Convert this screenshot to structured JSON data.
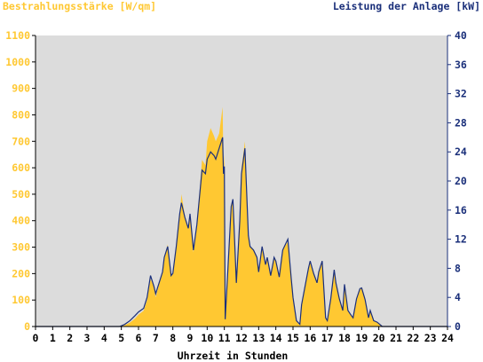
{
  "chart_data": {
    "type": "area",
    "title_left": "Bestrahlungsstärke [W/qm]",
    "title_right": "Leistung der Anlage [kW]",
    "xlabel": "Uhrzeit in Stunden",
    "xlim": [
      0,
      24
    ],
    "ylim_left": [
      0,
      1100
    ],
    "ylim_right": [
      0,
      40
    ],
    "x_ticks": [
      "0",
      "1",
      "2",
      "3",
      "4",
      "5",
      "6",
      "7",
      "8",
      "9",
      "10",
      "11",
      "12",
      "13",
      "14",
      "15",
      "16",
      "17",
      "18",
      "19",
      "20",
      "21",
      "22",
      "23",
      "24"
    ],
    "left_ticks": [
      "0",
      "100",
      "200",
      "300",
      "400",
      "500",
      "600",
      "700",
      "800",
      "900",
      "1000",
      "1100"
    ],
    "right_ticks": [
      "0",
      "4",
      "8",
      "12",
      "16",
      "20",
      "24",
      "28",
      "32",
      "36",
      "40"
    ],
    "colors": {
      "irradiance": "#ffc832",
      "power": "#1a2f7a",
      "plot_bg": "#dcdcdc"
    },
    "grid": false,
    "series": [
      {
        "name": "Bestrahlungsstärke [W/qm]",
        "axis": "left",
        "style": "filled-area",
        "x": [
          0,
          4.9,
          5.2,
          5.5,
          5.8,
          6.0,
          6.3,
          6.5,
          6.7,
          6.9,
          7.0,
          7.2,
          7.4,
          7.5,
          7.7,
          7.9,
          8.0,
          8.2,
          8.4,
          8.5,
          8.7,
          8.9,
          9.0,
          9.2,
          9.4,
          9.5,
          9.7,
          9.9,
          10.0,
          10.2,
          10.4,
          10.5,
          10.7,
          10.9,
          10.95,
          11.0,
          11.05,
          11.2,
          11.4,
          11.5,
          11.7,
          11.9,
          12.0,
          12.2,
          12.4,
          12.5,
          12.7,
          12.9,
          13.0,
          13.2,
          13.4,
          13.5,
          13.7,
          13.9,
          14.0,
          14.2,
          14.4,
          14.5,
          14.7,
          14.9,
          15.0,
          15.2,
          15.4,
          15.5,
          15.7,
          15.9,
          16.0,
          16.2,
          16.4,
          16.5,
          16.7,
          16.9,
          17.0,
          17.2,
          17.4,
          17.5,
          17.7,
          17.9,
          18.0,
          18.2,
          18.4,
          18.5,
          18.7,
          18.9,
          19.0,
          19.2,
          19.4,
          19.5,
          19.7,
          19.9,
          20.0,
          20.2,
          24
        ],
        "values": [
          0,
          0,
          5,
          15,
          30,
          45,
          60,
          100,
          180,
          150,
          110,
          160,
          200,
          260,
          310,
          190,
          200,
          300,
          420,
          500,
          420,
          370,
          420,
          280,
          390,
          460,
          630,
          610,
          700,
          750,
          720,
          700,
          730,
          830,
          600,
          650,
          40,
          200,
          450,
          480,
          160,
          400,
          600,
          700,
          350,
          300,
          290,
          260,
          200,
          300,
          230,
          260,
          190,
          260,
          250,
          180,
          290,
          300,
          320,
          170,
          100,
          20,
          5,
          80,
          150,
          220,
          250,
          200,
          160,
          210,
          250,
          30,
          20,
          100,
          210,
          160,
          100,
          60,
          160,
          60,
          40,
          30,
          100,
          140,
          145,
          100,
          30,
          60,
          20,
          15,
          10,
          0,
          0
        ]
      },
      {
        "name": "Leistung der Anlage [kW]",
        "axis": "right",
        "style": "line",
        "x": [
          0,
          4.9,
          5.2,
          5.5,
          5.8,
          6.0,
          6.3,
          6.5,
          6.7,
          6.9,
          7.0,
          7.2,
          7.4,
          7.5,
          7.7,
          7.9,
          8.0,
          8.2,
          8.4,
          8.5,
          8.7,
          8.9,
          9.0,
          9.2,
          9.4,
          9.5,
          9.7,
          9.9,
          10.0,
          10.2,
          10.4,
          10.5,
          10.7,
          10.9,
          10.95,
          11.0,
          11.05,
          11.2,
          11.4,
          11.5,
          11.7,
          11.9,
          12.0,
          12.2,
          12.4,
          12.5,
          12.7,
          12.9,
          13.0,
          13.2,
          13.4,
          13.5,
          13.7,
          13.9,
          14.0,
          14.2,
          14.4,
          14.5,
          14.7,
          14.9,
          15.0,
          15.2,
          15.4,
          15.5,
          15.7,
          15.9,
          16.0,
          16.2,
          16.4,
          16.5,
          16.7,
          16.9,
          17.0,
          17.2,
          17.4,
          17.5,
          17.7,
          17.9,
          18.0,
          18.2,
          18.4,
          18.5,
          18.7,
          18.9,
          19.0,
          19.2,
          19.4,
          19.5,
          19.7,
          19.9,
          20.0,
          20.2,
          24
        ],
        "values": [
          0,
          0,
          0.3,
          0.8,
          1.5,
          2.0,
          2.5,
          4.0,
          7.0,
          5.5,
          4.5,
          6.0,
          7.5,
          9.5,
          11.0,
          7.0,
          7.3,
          11.0,
          15.5,
          17.0,
          15.0,
          13.5,
          15.5,
          10.5,
          14.0,
          16.5,
          21.5,
          21.0,
          23.0,
          24.0,
          23.5,
          23.0,
          24.5,
          26.0,
          21.0,
          22.0,
          1.0,
          7.5,
          16.5,
          17.5,
          6.0,
          14.5,
          21.0,
          24.5,
          12.5,
          11.0,
          10.5,
          9.5,
          7.5,
          11.0,
          8.5,
          9.5,
          7.0,
          9.5,
          9.0,
          6.8,
          10.5,
          11.0,
          12.0,
          6.5,
          4.0,
          0.8,
          0.3,
          3.0,
          5.5,
          8.0,
          9.0,
          7.3,
          6.0,
          7.5,
          9.0,
          1.2,
          0.8,
          3.8,
          7.8,
          6.0,
          3.8,
          2.2,
          5.8,
          2.2,
          1.5,
          1.2,
          3.8,
          5.2,
          5.3,
          3.7,
          1.2,
          2.2,
          0.8,
          0.6,
          0.4,
          0,
          0
        ]
      }
    ]
  }
}
